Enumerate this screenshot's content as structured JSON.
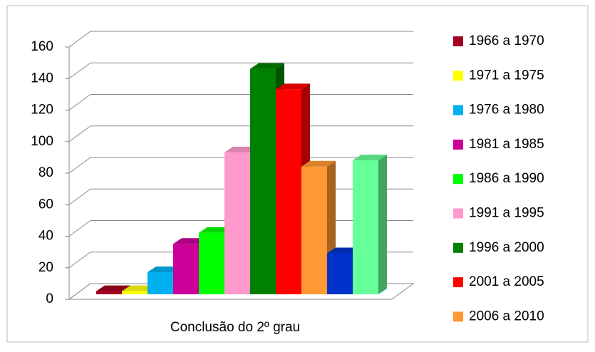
{
  "chart_data": {
    "type": "bar3d",
    "categories": [
      "Conclusão do 2º grau"
    ],
    "ylim": [
      0,
      160
    ],
    "yticks": [
      0,
      20,
      40,
      60,
      80,
      100,
      120,
      140,
      160
    ],
    "grid": true,
    "legend": "right",
    "series": [
      {
        "name": "1966 a 1970",
        "color": "#a50021",
        "values": [
          2
        ]
      },
      {
        "name": "1971 a 1975",
        "color": "#ffff00",
        "values": [
          2
        ]
      },
      {
        "name": "1976 a 1980",
        "color": "#00b0f0",
        "values": [
          14
        ]
      },
      {
        "name": "1981 a 1985",
        "color": "#cc0099",
        "values": [
          32
        ]
      },
      {
        "name": "1986 a 1990",
        "color": "#00ff00",
        "values": [
          39
        ]
      },
      {
        "name": "1991 a 1995",
        "color": "#ff99cc",
        "values": [
          90
        ]
      },
      {
        "name": "1996 a 2000",
        "color": "#008000",
        "values": [
          143
        ]
      },
      {
        "name": "2001 a 2005",
        "color": "#ff0000",
        "values": [
          130
        ]
      },
      {
        "name": "2006 a 2010",
        "color": "#ff9933",
        "values": [
          81
        ]
      },
      {
        "name": null,
        "color": "#0033cc",
        "values": [
          26
        ]
      },
      {
        "name": null,
        "color": "#66ff99",
        "values": [
          85
        ]
      }
    ]
  }
}
